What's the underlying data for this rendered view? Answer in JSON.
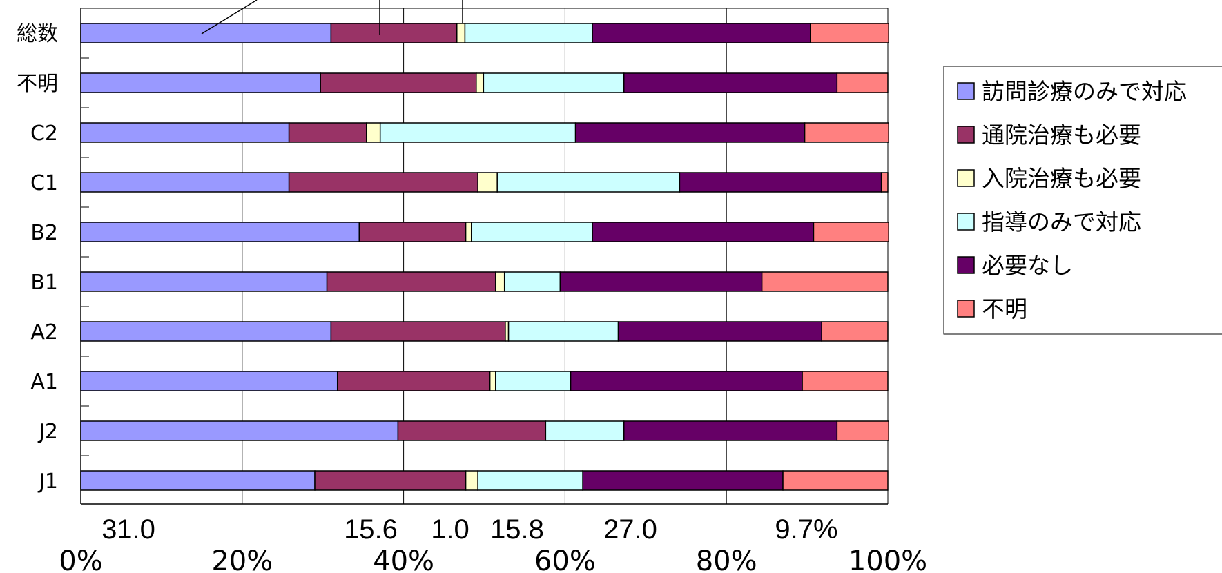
{
  "chart_data": {
    "type": "bar",
    "orientation": "horizontal",
    "stacked": "percent",
    "categories": [
      "総数",
      "不明",
      "C2",
      "C1",
      "B2",
      "B1",
      "A2",
      "A1",
      "J2",
      "J1"
    ],
    "series": [
      {
        "name": "訪問診療のみで対応",
        "color": "#9999ff",
        "values": [
          31.0,
          29.7,
          25.8,
          25.8,
          34.5,
          30.5,
          31.0,
          31.8,
          39.3,
          29.0
        ]
      },
      {
        "name": "通院治療も必要",
        "color": "#993366",
        "values": [
          15.6,
          19.3,
          9.6,
          23.4,
          13.2,
          20.9,
          21.6,
          18.9,
          18.3,
          18.7
        ]
      },
      {
        "name": "入院治療も必要",
        "color": "#ffffcc",
        "values": [
          1.0,
          0.9,
          1.7,
          2.4,
          0.7,
          1.1,
          0.4,
          0.7,
          0.0,
          1.5
        ]
      },
      {
        "name": "指導のみで対応",
        "color": "#ccffff",
        "values": [
          15.8,
          17.4,
          24.2,
          22.6,
          15.0,
          6.9,
          13.6,
          9.3,
          9.7,
          13.0
        ]
      },
      {
        "name": "必要なし",
        "color": "#660066",
        "values": [
          27.0,
          26.4,
          28.4,
          25.0,
          27.4,
          25.0,
          25.2,
          28.7,
          26.4,
          24.8
        ]
      },
      {
        "name": "不明",
        "color": "#ff8080",
        "values": [
          9.7,
          6.3,
          10.4,
          0.8,
          9.3,
          15.6,
          8.2,
          10.6,
          6.4,
          13.0
        ]
      }
    ],
    "xlim": [
      0,
      100
    ],
    "x_ticks": [
      "0%",
      "20%",
      "40%",
      "60%",
      "80%",
      "100%"
    ],
    "annotations": [
      "31.0",
      "15.6",
      "1.0",
      "15.8",
      "27.0",
      "9.7%"
    ],
    "grid": true,
    "legend_position": "right"
  }
}
